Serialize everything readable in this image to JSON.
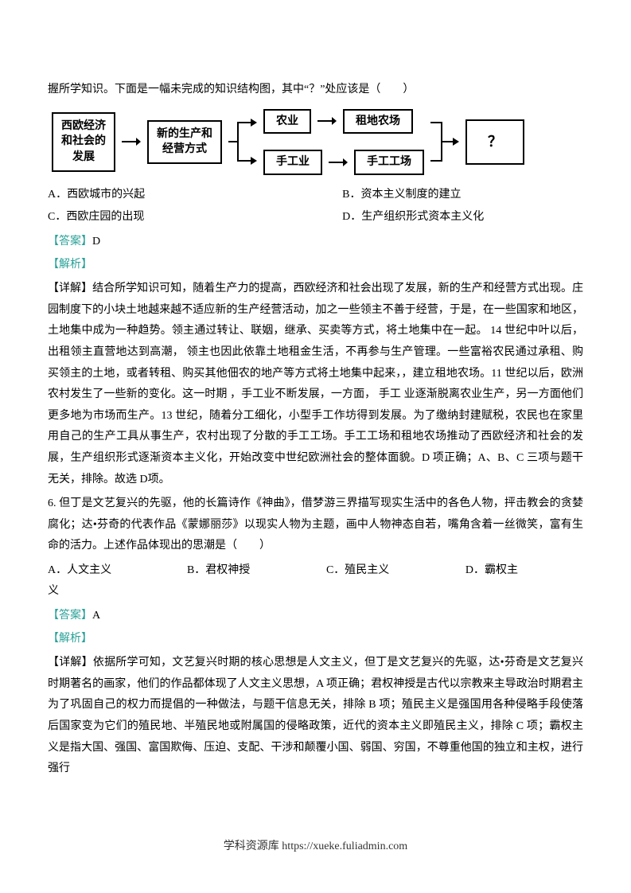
{
  "q5": {
    "intro": "握所学知识。下面是一幅未完成的知识结构图，其中“？”处应该是（　　）",
    "diagram": {
      "box1": "西欧经济\n和社会的\n发展",
      "box2": "新的生产和\n经营方式",
      "box3": "农业",
      "box4": "租地农场",
      "box5": "手工业",
      "box6": "手工工场",
      "box7": "？",
      "arrow_color": "#000000"
    },
    "options": {
      "a": "A．西欧城市的兴起",
      "b": "B．资本主义制度的建立",
      "c": "C．西欧庄园的出现",
      "d": "D．生产组织形式资本主义化"
    },
    "answer_label": "【答案】",
    "answer": "D",
    "analysis_label": "【解析】",
    "detail": "【详解】结合所学知识可知，随着生产力的提高，西欧经济和社会出现了发展，新的生产和经营方式出现。庄园制度下的小块土地越来越不适应新的生产经营活动，加之一些领主不善于经营，于是，在一些国家和地区，土地集中成为一种趋势。领主通过转让、联姻，继承、买卖等方式，将土地集中在一起。 14 世纪中叶以后， 出租领主直营地达到高潮， 领主也因此依靠土地租金生活，不再参与生产管理。一些富裕农民通过承租、购买领主的土地，或者转租、购买其他佃农的地产等方式将土地集中起来，，建立租地农场。11 世纪以后，欧洲农村发生了一些新的变化。这一时期 ，手工业不断发展，一方面， 手工 业逐渐脱离农业生产，另一方面他们更多地为市场而生产。13 世纪，随着分工细化，小型手工作坊得到发展。为了缴纳封建赋税，农民也在家里用自己的生产工具从事生产，农村出现了分散的手工工场。手工工场和租地农场推动了西欧经济和社会的发展，生产组织形式逐渐资本主义化，开始改变中世纪欧洲社会的整体面貌。D 项正确；A、B、C 三项与题干无关，排除。故选 D项。"
  },
  "q6": {
    "stem": "6. 但丁是文艺复兴的先驱，他的长篇诗作《神曲》，借梦游三界描写现实生活中的各色人物，抨击教会的贪婪腐化；达•芬奇的代表作品《蒙娜丽莎》以现实人物为主题，画中人物神态自若，嘴角含着一丝微笑，富有生命的活力。上述作品体现出的思潮是（　　）",
    "options": {
      "a": "A．人文主义",
      "b": "B．君权神授",
      "c": "C．殖民主义",
      "d": "D．霸权主",
      "e": "义"
    },
    "answer_label": "【答案】",
    "answer": "A",
    "analysis_label": "【解析】",
    "detail": "【详解】依据所学可知，文艺复兴时期的核心思想是人文主义，但丁是文艺复兴的先驱，达•芬奇是文艺复兴时期著名的画家，他们的作品都体现了人文主义思想，A 项正确；君权神授是古代以宗教来主导政治时期君主为了巩固自己的权力而提倡的一种做法，与题干信息无关，排除 B 项；殖民主义是强国用各种侵略手段使落后国家变为它们的殖民地、半殖民地或附属国的侵略政策，近代的资本主义即殖民主义，排除 C 项；霸权主义是指大国、强国、富国欺侮、压迫、支配、干涉和颠覆小国、弱国、穷国，不尊重他国的独立和主权，进行强行"
  },
  "footer": "学科资源库 https://xueke.fuliadmin.com"
}
